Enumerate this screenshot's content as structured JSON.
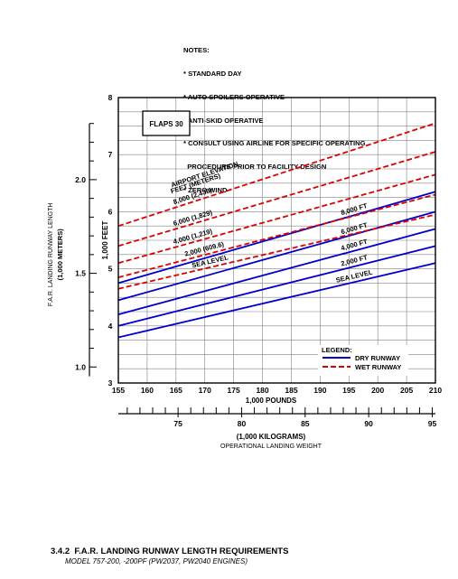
{
  "notes": {
    "heading": "NOTES:",
    "items": [
      "* STANDARD DAY",
      "* AUTO SPOILERS OPERATIVE",
      "* ANTI-SKID OPERATIVE",
      "* CONSULT USING AIRLINE FOR SPECIFIC OPERATING",
      "  PROCEDURE PRIOR TO FACILITY DESIGN",
      "* ZERO WIND"
    ]
  },
  "chart_data": {
    "type": "line",
    "flaps_label": "FLAPS 30",
    "x": {
      "label": "1,000 POUNDS",
      "range": [
        155,
        210
      ],
      "ticks": [
        155,
        160,
        165,
        170,
        175,
        180,
        185,
        190,
        195,
        200,
        205,
        210
      ]
    },
    "x_kg": {
      "label": "(1,000 KILOGRAMS)",
      "sublabel": "OPERATIONAL LANDING WEIGHT",
      "range": [
        70.3,
        95.25
      ],
      "tick_labels": [
        75,
        80,
        85,
        90,
        95
      ]
    },
    "y_feet": {
      "label": "1,000 FEET",
      "range": [
        3,
        8
      ],
      "ticks": [
        3,
        4,
        5,
        6,
        7,
        8
      ]
    },
    "y_meters": {
      "label": "F.A.R. LANDING RUNWAY LENGTH",
      "sublabel": "(1,000 METERS)",
      "tick_labels": [
        "1.0",
        "1.5",
        "2.0"
      ],
      "tick_values": [
        1.0,
        1.5,
        2.0
      ]
    },
    "airport_elevation_label": "AIRPORT ELEVATION",
    "airport_elevation_sublabel": "FEET  (METERS)",
    "series": [
      {
        "name": "SEA LEVEL",
        "condition": "dry",
        "x": [
          155,
          210
        ],
        "y": [
          3.8,
          5.1
        ]
      },
      {
        "name": "2,000 FT",
        "condition": "dry",
        "x": [
          155,
          210
        ],
        "y": [
          4.0,
          5.4
        ]
      },
      {
        "name": "4,000 FT",
        "condition": "dry",
        "x": [
          155,
          210
        ],
        "y": [
          4.2,
          5.7
        ]
      },
      {
        "name": "6,000 FT",
        "condition": "dry",
        "x": [
          155,
          210
        ],
        "y": [
          4.45,
          6.0
        ]
      },
      {
        "name": "8,000 FT",
        "condition": "dry",
        "x": [
          155,
          210
        ],
        "y": [
          4.75,
          6.35
        ]
      },
      {
        "name": "SEA LEVEL",
        "condition": "wet",
        "x": [
          155,
          210
        ],
        "y": [
          4.65,
          5.95
        ]
      },
      {
        "name": "2,000  (609.6)",
        "condition": "wet",
        "x": [
          155,
          210
        ],
        "y": [
          4.85,
          6.3
        ]
      },
      {
        "name": "4,000  (1,219)",
        "condition": "wet",
        "x": [
          155,
          210
        ],
        "y": [
          5.1,
          6.65
        ]
      },
      {
        "name": "6,000  (1,829)",
        "condition": "wet",
        "x": [
          155,
          210
        ],
        "y": [
          5.4,
          7.05
        ]
      },
      {
        "name": "8,000  (2,438)",
        "condition": "wet",
        "x": [
          155,
          210
        ],
        "y": [
          5.75,
          7.55
        ]
      }
    ],
    "legend": {
      "title": "LEGEND:",
      "placement": "bottom-right",
      "entries": [
        {
          "label": "DRY RUNWAY",
          "color": "#0000cc",
          "style": "solid"
        },
        {
          "label": "WET RUNWAY",
          "color": "#dd0000",
          "style": "dashed"
        }
      ]
    },
    "colors": {
      "dry": "#0000cc",
      "wet": "#dd0000",
      "grid": "#808080"
    },
    "grid": true
  },
  "footer": {
    "section": "3.4.2",
    "title": "F.A.R. LANDING RUNWAY LENGTH REQUIREMENTS",
    "subtitle": "MODEL  757-200, -200PF (PW2037, PW2040 ENGINES)"
  }
}
